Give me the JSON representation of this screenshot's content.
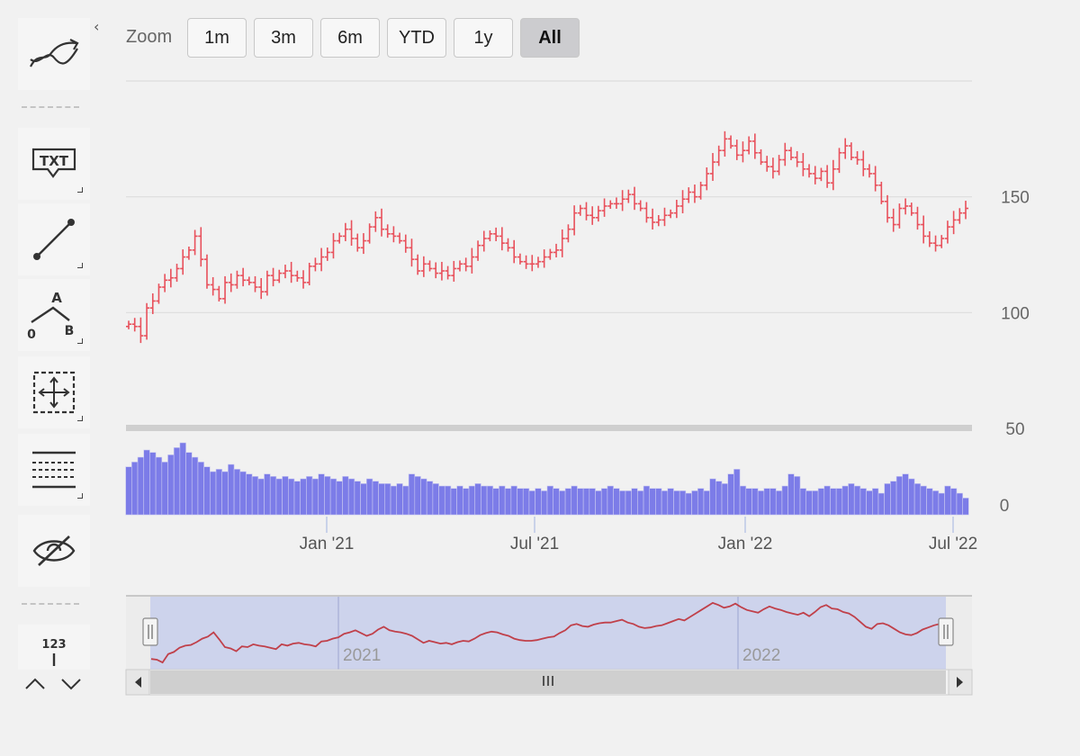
{
  "toolbar": {
    "zoom_label": "Zoom",
    "zoom_buttons": [
      {
        "label": "1m",
        "active": false
      },
      {
        "label": "3m",
        "active": false
      },
      {
        "label": "6m",
        "active": false
      },
      {
        "label": "YTD",
        "active": false
      },
      {
        "label": "1y",
        "active": false
      },
      {
        "label": "All",
        "active": true
      }
    ]
  },
  "sidebar": {
    "tools": [
      {
        "name": "indicators-icon"
      },
      {
        "name": "text-annotation-icon",
        "text": "TXT"
      },
      {
        "name": "line-icon"
      },
      {
        "name": "measure-icon",
        "text_top": "A",
        "text_left": "0",
        "text_right": "B"
      },
      {
        "name": "move-icon"
      },
      {
        "name": "fibonacci-icon"
      },
      {
        "name": "hide-icon"
      },
      {
        "name": "current-price-icon",
        "text": "123"
      }
    ]
  },
  "colors": {
    "ohlc": "#e8505b",
    "volume": "#7c7ce8",
    "navigator_line": "#c0404a",
    "navigator_mask": "#c8cfec",
    "grid": "#dcdcdc"
  },
  "chart_data": {
    "type": "ohlc",
    "price_axis": {
      "ticks": [
        50,
        100,
        150
      ],
      "range": [
        50,
        200
      ]
    },
    "volume_axis": {
      "ticks": [
        0
      ],
      "range": [
        0,
        30
      ]
    },
    "x_labels": [
      "Jan '21",
      "Jul '21",
      "Jan '22",
      "Jul '22"
    ],
    "navigator_labels": [
      "2021",
      "2022"
    ],
    "series": [
      {
        "name": "",
        "close": [
          95,
          94,
          90,
          102,
          105,
          111,
          114,
          115,
          119,
          124,
          127,
          133,
          123,
          112,
          110,
          106,
          113,
          112,
          116,
          114,
          113,
          111,
          109,
          116,
          114,
          117,
          118,
          116,
          115,
          113,
          120,
          121,
          124,
          126,
          131,
          133,
          136,
          132,
          128,
          131,
          137,
          141,
          136,
          134,
          133,
          131,
          128,
          123,
          118,
          121,
          119,
          117,
          118,
          116,
          119,
          121,
          120,
          124,
          129,
          132,
          134,
          133,
          130,
          128,
          124,
          122,
          121,
          121,
          122,
          124,
          126,
          127,
          132,
          136,
          143,
          145,
          142,
          141,
          144,
          146,
          147,
          147,
          149,
          151,
          147,
          145,
          141,
          139,
          140,
          142,
          143,
          146,
          149,
          152,
          150,
          155,
          160,
          165,
          170,
          175,
          172,
          168,
          170,
          174,
          169,
          165,
          163,
          161,
          166,
          170,
          167,
          165,
          162,
          160,
          158,
          161,
          156,
          162,
          169,
          172,
          167,
          166,
          162,
          160,
          155,
          148,
          141,
          138,
          145,
          146,
          143,
          138,
          133,
          130,
          129,
          132,
          137,
          140,
          143,
          145
        ]
      }
    ],
    "volume": [
      20,
      22,
      24,
      27,
      26,
      24,
      22,
      25,
      28,
      30,
      26,
      24,
      22,
      20,
      18,
      19,
      18,
      21,
      19,
      18,
      17,
      16,
      15,
      17,
      16,
      15,
      16,
      15,
      14,
      15,
      16,
      15,
      17,
      16,
      15,
      14,
      16,
      15,
      14,
      13,
      15,
      14,
      13,
      13,
      12,
      13,
      12,
      17,
      16,
      15,
      14,
      13,
      12,
      12,
      11,
      12,
      11,
      12,
      13,
      12,
      12,
      11,
      12,
      11,
      12,
      11,
      11,
      10,
      11,
      10,
      12,
      11,
      10,
      11,
      12,
      11,
      11,
      11,
      10,
      11,
      12,
      11,
      10,
      10,
      11,
      10,
      12,
      11,
      11,
      10,
      11,
      10,
      10,
      9,
      10,
      11,
      10,
      15,
      14,
      13,
      17,
      19,
      12,
      11,
      11,
      10,
      11,
      11,
      10,
      12,
      17,
      16,
      11,
      10,
      10,
      11,
      12,
      11,
      11,
      12,
      13,
      12,
      11,
      10,
      11,
      9,
      13,
      14,
      16,
      17,
      15,
      13,
      12,
      11,
      10,
      9,
      12,
      11,
      9,
      7
    ]
  }
}
